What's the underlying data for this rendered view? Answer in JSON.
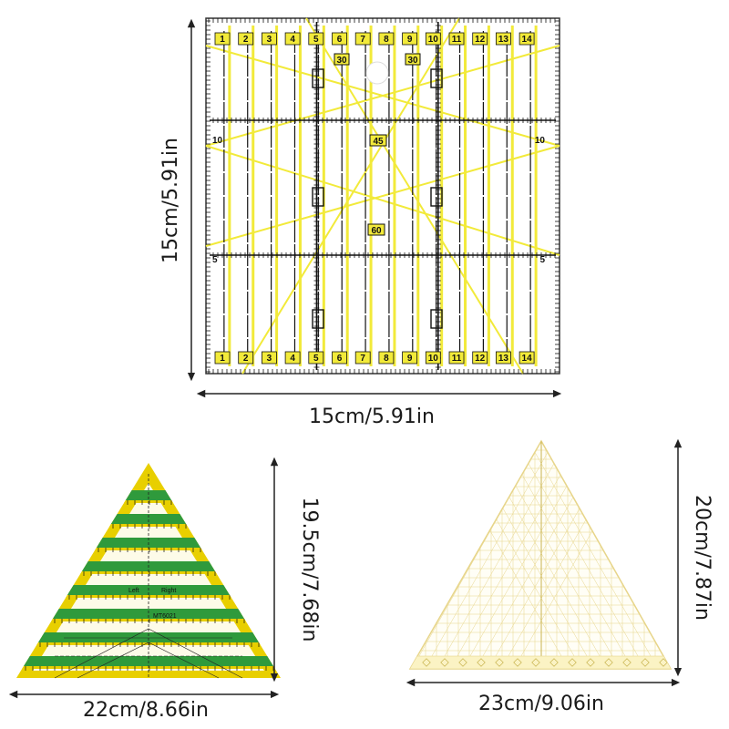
{
  "square_ruler": {
    "width_label": "15cm/5.91in",
    "height_label": "15cm/5.91in",
    "top_numbers": [
      "1",
      "2",
      "3",
      "4",
      "5",
      "6",
      "7",
      "8",
      "9",
      "10",
      "11",
      "12",
      "13",
      "14"
    ],
    "bottom_numbers": [
      "1",
      "2",
      "3",
      "4",
      "5",
      "6",
      "7",
      "8",
      "9",
      "10",
      "11",
      "12",
      "13",
      "14"
    ],
    "side_numbers": [
      "10",
      "5"
    ],
    "angle_labels": [
      "30",
      "30",
      "45",
      "60"
    ],
    "accent_color": "#f2ea3a"
  },
  "triangle_yellow": {
    "width_label": "22cm/8.66in",
    "height_label": "19.5cm/7.68in",
    "text_left": "Left",
    "text_right": "Right",
    "model": "MT6021",
    "colors": {
      "frame": "#e8cf00",
      "stripe": "#2f9a3c"
    }
  },
  "triangle_clear": {
    "width_label": "23cm/9.06in",
    "height_label": "20cm/7.87in",
    "colors": {
      "line": "#e7d58a"
    }
  }
}
